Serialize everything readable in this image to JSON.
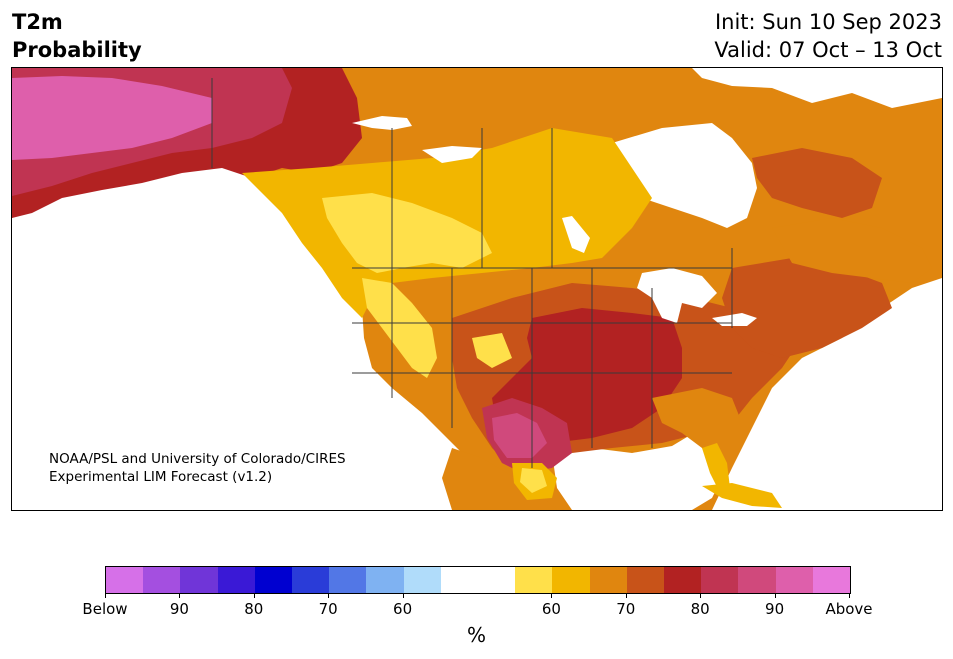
{
  "title": {
    "variable": "T2m",
    "subtitle": "Probability",
    "init": "Init: Sun 10 Sep 2023",
    "valid": "Valid: 07 Oct – 13 Oct"
  },
  "credit": {
    "line1": "NOAA/PSL and University of Colorado/CIRES",
    "line2": "Experimental LIM Forecast (v1.2)"
  },
  "colorbar": {
    "colors": [
      "#d670e8",
      "#a44fe0",
      "#7035d8",
      "#3a19d6",
      "#0000d0",
      "#2a3cd8",
      "#5277e6",
      "#7fb2f2",
      "#b0dcfa",
      "#ffffff",
      "#ffffff",
      "#ffe04a",
      "#f2b600",
      "#e0860f",
      "#c85319",
      "#b22222",
      "#c03452",
      "#d0497c",
      "#de5fab",
      "#e878dc"
    ],
    "tick_labels": [
      "Below",
      "90",
      "80",
      "70",
      "60",
      "60",
      "70",
      "80",
      "90",
      "Above"
    ],
    "units": "%"
  },
  "map_colors": {
    "white": "#ffffff",
    "p60": "#ffe04a",
    "p65": "#f2b600",
    "p70": "#e0860f",
    "p75": "#c85319",
    "p80": "#b22222",
    "p85": "#c03452",
    "p90": "#d0497c",
    "p95": "#de5fab",
    "border": "#3a3a3a"
  }
}
